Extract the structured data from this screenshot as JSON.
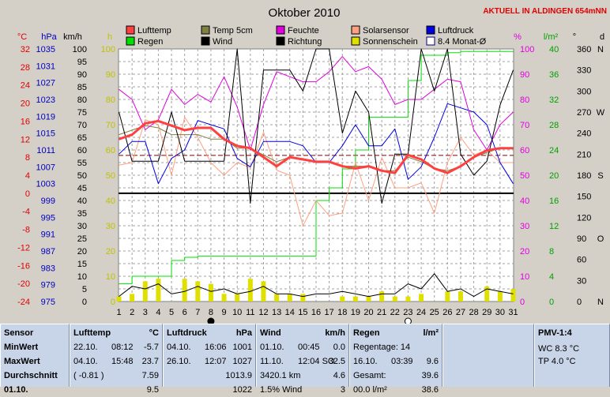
{
  "title": "Oktober 2010",
  "station_note": "AKTUELL IN ALDINGEN 654mNN",
  "axis_units": {
    "temp": "°C",
    "pressure": "hPa",
    "wind": "km/h",
    "hours": "h",
    "percent": "%",
    "rain": "l/m²",
    "direction_deg": "°",
    "direction": "d"
  },
  "axes": {
    "temp": [
      -24.0,
      -20.0,
      -16.0,
      -12.0,
      -8.0,
      -4.0,
      0.0,
      4.0,
      8.0,
      12.0,
      16.0,
      20.0,
      24.0,
      28.0,
      32.0
    ],
    "pressure": [
      975,
      979,
      983,
      987,
      991,
      995,
      999,
      1003,
      1007,
      1011,
      1015,
      1019,
      1023,
      1027,
      1031,
      1035
    ],
    "wind": [
      0.0,
      5.0,
      10.0,
      15.0,
      20.0,
      25.0,
      30.0,
      35.0,
      40.0,
      45.0,
      50.0,
      55.0,
      60.0,
      65.0,
      70.0,
      75.0,
      80.0,
      85.0,
      90.0,
      95.0,
      100.0
    ],
    "hours": [
      0,
      10,
      20,
      30,
      40,
      50,
      60,
      70,
      80,
      90,
      100
    ],
    "percent": [
      0,
      10,
      20,
      30,
      40,
      50,
      60,
      70,
      80,
      90,
      100
    ],
    "rain": [
      0.0,
      4.0,
      8.0,
      12.0,
      16.0,
      20.0,
      24.0,
      28.0,
      32.0,
      36.0,
      40.0
    ],
    "direction_deg": [
      0,
      30,
      60,
      90,
      120,
      150,
      180,
      210,
      240,
      270,
      300,
      330,
      360
    ],
    "direction": [
      "N",
      "",
      "",
      "O",
      "",
      "",
      "S",
      "",
      "",
      "W",
      "",
      "",
      "N"
    ]
  },
  "legend": [
    {
      "label": "Lufttemp",
      "color": "#ff4040",
      "type": "box"
    },
    {
      "label": "Temp 5cm",
      "color": "#808040",
      "type": "box"
    },
    {
      "label": "Feuchte",
      "color": "#e000e0",
      "type": "box"
    },
    {
      "label": "Solarsensor",
      "color": "#ffa080",
      "type": "box"
    },
    {
      "label": "Luftdruck",
      "color": "#0000e0",
      "type": "box"
    },
    {
      "label": "Regen",
      "color": "#00e000",
      "type": "box"
    },
    {
      "label": "Wind",
      "color": "#000000",
      "type": "box"
    },
    {
      "label": "Richtung",
      "color": "#000000",
      "type": "box"
    },
    {
      "label": "Sonnenschein",
      "color": "#e0e000",
      "type": "box"
    },
    {
      "label": "8.4 Monat-Ø",
      "color": "#000080",
      "type": "outline"
    }
  ],
  "chart_data": {
    "type": "line",
    "x": [
      1,
      2,
      3,
      4,
      5,
      6,
      7,
      8,
      9,
      10,
      11,
      12,
      13,
      14,
      15,
      16,
      17,
      18,
      19,
      20,
      21,
      22,
      23,
      24,
      25,
      26,
      27,
      28,
      29,
      30,
      31
    ],
    "series": [
      {
        "name": "Lufttemp",
        "axis": "temp",
        "color": "#ff4040",
        "width": 3,
        "values": [
          12.0,
          13.0,
          15.5,
          16.0,
          15.0,
          14.0,
          14.5,
          14.5,
          12.0,
          10.5,
          10.0,
          8.0,
          6.0,
          8.0,
          7.5,
          7.0,
          7.0,
          6.0,
          5.5,
          6.0,
          5.0,
          4.5,
          8.5,
          7.5,
          5.5,
          4.5,
          6.0,
          8.0,
          9.5,
          10.0,
          10.0
        ]
      },
      {
        "name": "Temp 5cm",
        "axis": "temp",
        "color": "#808040",
        "width": 1,
        "values": [
          13.0,
          14.0,
          15.0,
          14.5,
          13.0,
          13.0,
          13.0,
          12.0,
          12.0,
          10.0,
          10.0,
          8.5,
          7.0,
          8.0,
          7.5,
          7.0,
          7.0,
          6.0,
          6.0,
          6.0,
          5.0,
          5.0,
          8.0,
          7.0,
          5.5,
          5.0,
          6.0,
          8.0,
          9.0,
          10.0,
          10.0
        ]
      },
      {
        "name": "Feuchte",
        "axis": "percent",
        "color": "#e000e0",
        "width": 1,
        "values": [
          84,
          80,
          68,
          72,
          84,
          78,
          82,
          79,
          89,
          77,
          60,
          78,
          91,
          89,
          87,
          87,
          91,
          97,
          91,
          93,
          88,
          78,
          80,
          80,
          84,
          88,
          87,
          68,
          60,
          70,
          75
        ]
      },
      {
        "name": "Solarsensor",
        "axis": "percent",
        "color": "#ffa080",
        "width": 1,
        "values": [
          54,
          55,
          72,
          70,
          50,
          73,
          65,
          55,
          50,
          55,
          53,
          67,
          52,
          50,
          30,
          40,
          34,
          35,
          55,
          40,
          57,
          45,
          45,
          47,
          35,
          55,
          65,
          58,
          60,
          55,
          55
        ]
      },
      {
        "name": "Luftdruck",
        "axis": "pressure",
        "color": "#0000e0",
        "width": 1,
        "values": [
          1010,
          1013,
          1013,
          1003,
          1009,
          1011,
          1018,
          1017,
          1016,
          1009,
          1007,
          1013,
          1013,
          1013,
          1012,
          1008,
          1008,
          1012,
          1017,
          1012,
          1012,
          1016,
          1004,
          1007,
          1014,
          1022,
          1021,
          1020,
          1017,
          1008,
          1003
        ]
      },
      {
        "name": "Regen",
        "axis": "rain",
        "color": "#00e000",
        "width": 1,
        "step": true,
        "values": [
          2.8,
          4.0,
          4.0,
          4.0,
          6.5,
          7.0,
          7.2,
          7.2,
          7.2,
          7.2,
          7.2,
          7.2,
          7.2,
          7.2,
          7.2,
          16.0,
          18.0,
          21.0,
          24.0,
          29.2,
          29.2,
          29.2,
          35.0,
          39.0,
          39.0,
          39.4,
          39.6,
          39.6,
          39.6,
          39.6,
          39.6
        ]
      },
      {
        "name": "Wind",
        "axis": "wind",
        "color": "#000000",
        "width": 1,
        "values": [
          2.0,
          6.0,
          5.0,
          7.0,
          3.0,
          4.0,
          6.0,
          4.0,
          5.0,
          3.0,
          4.0,
          6.0,
          3.0,
          3.0,
          2.0,
          3.0,
          3.0,
          4.0,
          3.0,
          2.0,
          3.0,
          3.0,
          7.0,
          5.0,
          11.0,
          4.0,
          5.0,
          2.0,
          5.0,
          4.0,
          3.0
        ]
      },
      {
        "name": "Richtung",
        "axis": "direction_deg",
        "color": "#000000",
        "width": 1,
        "values": [
          270,
          200,
          200,
          200,
          270,
          200,
          200,
          200,
          200,
          360,
          140,
          330,
          330,
          330,
          300,
          360,
          360,
          240,
          300,
          270,
          140,
          210,
          210,
          360,
          300,
          360,
          210,
          180,
          200,
          280,
          330
        ]
      }
    ],
    "bars": {
      "name": "Sonnenschein",
      "axis": "hours",
      "color": "#e0e000",
      "values": [
        2,
        3,
        8,
        9,
        0,
        9,
        8,
        7,
        3,
        3,
        9,
        8,
        3,
        3,
        3,
        0,
        0,
        2,
        2,
        2,
        4,
        2,
        2,
        3,
        0,
        4,
        4,
        0,
        6,
        4,
        5
      ]
    },
    "reference_lines": [
      {
        "axis": "temp",
        "value": 8.4,
        "color": "#800000",
        "dash": "6,3",
        "label": "8.4 Monat-Ø"
      },
      {
        "axis": "temp",
        "value": 0.0,
        "color": "#000000",
        "width": 2
      }
    ],
    "moon_markers": [
      {
        "x": 8,
        "type": "full"
      },
      {
        "x": 23,
        "type": "new"
      }
    ],
    "title": "Oktober 2010",
    "grid": true
  },
  "panels": {
    "sensor": {
      "title": "Sensor",
      "rows": [
        "MinWert",
        "MaxWert",
        "Durchschnitt",
        "01.10."
      ]
    },
    "lufttemp": {
      "title": "Lufttemp",
      "unit": "°C",
      "rows": [
        [
          "22.10.",
          "08:12",
          "-5.7"
        ],
        [
          "04.10.",
          "15:48",
          "23.7"
        ],
        [
          "( -0.81 )",
          "",
          "7.59"
        ],
        [
          "",
          "",
          "9.5"
        ]
      ]
    },
    "luftdruck": {
      "title": "Luftdruck",
      "unit": "hPa",
      "rows": [
        [
          "04.10.",
          "16:06",
          "1001"
        ],
        [
          "26.10.",
          "12:07",
          "1027"
        ],
        [
          "",
          "",
          "1013.9"
        ],
        [
          "",
          "",
          "1022"
        ]
      ]
    },
    "wind": {
      "title": "Wind",
      "unit": "km/h",
      "rows": [
        [
          "01.10.",
          "00:45",
          "0.0"
        ],
        [
          "11.10.",
          "12:04 SO",
          "32.5"
        ],
        [
          "3420.1 km",
          "",
          "4.6"
        ],
        [
          "1.5% Wind",
          "",
          "3"
        ]
      ]
    },
    "regen": {
      "title": "Regen",
      "unit": "l/m²",
      "rows": [
        [
          "Regentage: 14",
          ""
        ],
        [
          "16.10.",
          "03:39",
          "9.6"
        ],
        [
          "Gesamt:",
          "",
          "39.6"
        ],
        [
          "00.0 l/m²",
          "",
          "38.6"
        ]
      ]
    },
    "pmv": {
      "title": "PMV-1:4",
      "rows": [
        "WC 8.3 °C",
        "TP 4.0 °C"
      ]
    }
  }
}
